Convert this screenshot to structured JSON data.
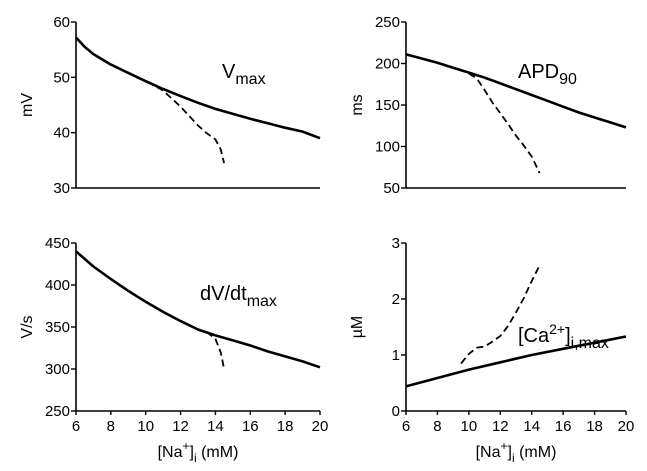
{
  "chart_data": [
    {
      "type": "line",
      "ylabel": "mV",
      "annotation": {
        "main": "V",
        "sub": "max",
        "sup": ""
      },
      "xlim": [
        6,
        20
      ],
      "ylim": [
        30,
        60
      ],
      "xticks": [],
      "yticks": [
        30,
        40,
        50,
        60
      ],
      "xlabel": {
        "main": "",
        "sup": "",
        "sub": "",
        "tail": ""
      },
      "series": [
        {
          "style": "solid",
          "x": [
            6,
            6.5,
            7,
            8,
            9,
            10,
            11,
            12,
            13,
            14,
            15,
            16,
            17,
            18,
            19,
            20
          ],
          "y": [
            57.2,
            55.5,
            54.2,
            52.3,
            50.8,
            49.3,
            47.9,
            46.6,
            45.4,
            44.3,
            43.4,
            42.5,
            41.7,
            40.9,
            40.2,
            39.0
          ]
        },
        {
          "style": "dashed",
          "x": [
            9.5,
            10,
            11,
            12,
            13,
            13.5,
            14,
            14.3,
            14.5
          ],
          "y": [
            49.9,
            49.4,
            47.6,
            44.7,
            41.3,
            39.9,
            38.8,
            37.0,
            34.5
          ]
        }
      ]
    },
    {
      "type": "line",
      "ylabel": "ms",
      "annotation": {
        "main": "APD",
        "sub": "90",
        "sup": ""
      },
      "xlim": [
        6,
        20
      ],
      "ylim": [
        50,
        250
      ],
      "xticks": [],
      "yticks": [
        50,
        100,
        150,
        200,
        250
      ],
      "xlabel": {
        "main": "",
        "sup": "",
        "sub": "",
        "tail": ""
      },
      "series": [
        {
          "style": "solid",
          "x": [
            6,
            7,
            8,
            9,
            10,
            11,
            12,
            13,
            14,
            15,
            16,
            17,
            18,
            19,
            20
          ],
          "y": [
            211,
            206,
            201,
            195,
            189,
            183,
            176,
            169,
            162,
            155,
            148,
            141,
            135,
            129,
            123
          ]
        },
        {
          "style": "dashed",
          "x": [
            10,
            10.5,
            11,
            11.5,
            12,
            12.5,
            13,
            13.5,
            14,
            14.5
          ],
          "y": [
            188,
            182,
            168,
            153,
            140,
            127,
            113,
            101,
            88,
            68
          ]
        }
      ]
    },
    {
      "type": "line",
      "ylabel": "V/s",
      "annotation": {
        "main": "dV/dt",
        "sub": "max",
        "sup": ""
      },
      "xlim": [
        6,
        20
      ],
      "ylim": [
        250,
        450
      ],
      "xticks": [
        6,
        8,
        10,
        12,
        14,
        16,
        18,
        20
      ],
      "yticks": [
        250,
        300,
        350,
        400,
        450
      ],
      "xlabel": {
        "main": "[Na",
        "sup": "+",
        "sub": "i",
        "tail": " (mM)"
      },
      "series": [
        {
          "style": "solid",
          "x": [
            6,
            7,
            8,
            9,
            10,
            11,
            12,
            13,
            14,
            15,
            16,
            17,
            18,
            19,
            20
          ],
          "y": [
            440,
            422,
            407,
            393,
            380,
            368,
            357,
            347,
            340,
            334,
            328,
            321,
            315,
            309,
            302
          ]
        },
        {
          "style": "dashed",
          "x": [
            13.5,
            14,
            14.3,
            14.5
          ],
          "y": [
            344,
            336,
            320,
            300
          ]
        }
      ]
    },
    {
      "type": "line",
      "ylabel": "µM",
      "annotation": {
        "main": "[Ca",
        "sub": "i,max",
        "sup": "2+"
      },
      "xlim": [
        6,
        20
      ],
      "ylim": [
        0,
        3
      ],
      "xticks": [
        6,
        8,
        10,
        12,
        14,
        16,
        18,
        20
      ],
      "yticks": [
        0,
        1,
        2,
        3
      ],
      "xlabel": {
        "main": "[Na",
        "sup": "+",
        "sub": "i",
        "tail": " (mM)"
      },
      "series": [
        {
          "style": "solid",
          "x": [
            6,
            8,
            10,
            12,
            14,
            16,
            18,
            20
          ],
          "y": [
            0.44,
            0.59,
            0.74,
            0.87,
            1.0,
            1.11,
            1.22,
            1.33
          ]
        },
        {
          "style": "dashed",
          "x": [
            9.5,
            10,
            10.5,
            11,
            11.5,
            12,
            12.5,
            13,
            13.5,
            14,
            14.5
          ],
          "y": [
            0.85,
            1.02,
            1.13,
            1.15,
            1.24,
            1.34,
            1.52,
            1.76,
            2.02,
            2.32,
            2.6
          ]
        }
      ]
    }
  ]
}
